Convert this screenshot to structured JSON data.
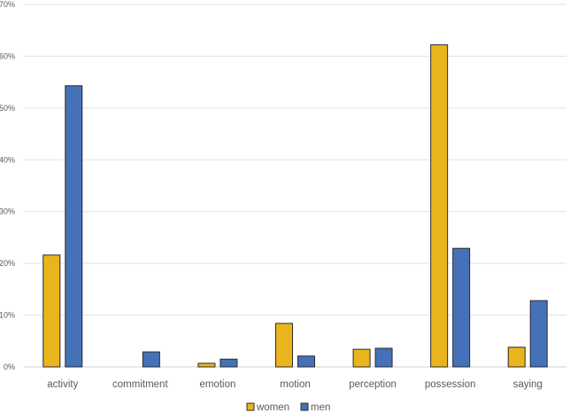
{
  "chart_data": {
    "type": "bar",
    "title": "",
    "xlabel": "",
    "ylabel": "",
    "ylim": [
      0,
      70
    ],
    "y_ticks": [
      "0%",
      "10%",
      "20%",
      "30%",
      "40%",
      "50%",
      "60%",
      "70%"
    ],
    "grid": true,
    "legend_position": "bottom",
    "categories": [
      "activity",
      "commitment",
      "emotion",
      "motion",
      "perception",
      "possession",
      "saying"
    ],
    "series": [
      {
        "name": "women",
        "color": "#E9B41C",
        "values": [
          21.6,
          0,
          0.7,
          8.4,
          3.4,
          62.2,
          3.8
        ]
      },
      {
        "name": "men",
        "color": "#4571B8",
        "values": [
          54.3,
          2.9,
          1.5,
          2.1,
          3.6,
          22.9,
          12.8
        ]
      }
    ]
  }
}
